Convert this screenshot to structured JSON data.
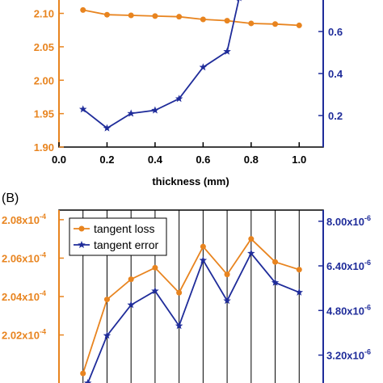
{
  "chart_data": [
    {
      "type": "line",
      "panel_label": "",
      "xlabel": "thickness (mm)",
      "x_ticks": [
        "0.0",
        "0.2",
        "0.4",
        "0.6",
        "0.8",
        "1.0"
      ],
      "xlim": [
        0.0,
        1.1
      ],
      "y_left": {
        "ylim": [
          1.9,
          2.12
        ],
        "ticks": [
          {
            "v": 1.9,
            "label": "1.90"
          },
          {
            "v": 1.95,
            "label": "1.95"
          },
          {
            "v": 2.0,
            "label": "2.00"
          },
          {
            "v": 2.05,
            "label": "2.05"
          },
          {
            "v": 2.1,
            "label": "2.10"
          }
        ],
        "color": "#E8841F"
      },
      "y_right": {
        "ylim": [
          0.05,
          0.75
        ],
        "ticks": [
          {
            "v": 0.2,
            "label": "0.2"
          },
          {
            "v": 0.4,
            "label": "0.4"
          },
          {
            "v": 0.6,
            "label": "0.6"
          }
        ],
        "color": "#1F2C9A"
      },
      "series": [
        {
          "axis": "left",
          "marker": "circle",
          "color": "#E8841F",
          "x": [
            0.1,
            0.2,
            0.3,
            0.4,
            0.5,
            0.6,
            0.7,
            0.8,
            0.9,
            1.0
          ],
          "y": [
            2.105,
            2.098,
            2.097,
            2.096,
            2.095,
            2.091,
            2.089,
            2.085,
            2.084,
            2.082
          ]
        },
        {
          "axis": "right",
          "marker": "star",
          "color": "#1F2C9A",
          "x": [
            0.1,
            0.2,
            0.3,
            0.4,
            0.5,
            0.6,
            0.7,
            0.75
          ],
          "y": [
            0.23,
            0.14,
            0.21,
            0.225,
            0.28,
            0.43,
            0.505,
            0.76
          ]
        }
      ]
    },
    {
      "type": "line",
      "panel_label": "(B)",
      "xlabel": "",
      "x_ticks": [],
      "xlim": [
        0.0,
        1.1
      ],
      "y_left": {
        "ylim": [
          1.995,
          2.085
        ],
        "ticks": [
          {
            "v": 2.02,
            "label": "2.02x10",
            "exp": "-4"
          },
          {
            "v": 2.04,
            "label": "2.04x10",
            "exp": "-4"
          },
          {
            "v": 2.06,
            "label": "2.06x10",
            "exp": "-4"
          },
          {
            "v": 2.08,
            "label": "2.08x10",
            "exp": "-4"
          }
        ],
        "color": "#E8841F"
      },
      "y_right": {
        "ylim": [
          2.2,
          8.4
        ],
        "ticks": [
          {
            "v": 3.2,
            "label": "3.20x10",
            "exp": "-6"
          },
          {
            "v": 4.8,
            "label": "4.80x10",
            "exp": "-6"
          },
          {
            "v": 6.4,
            "label": "6.40x10",
            "exp": "-6"
          },
          {
            "v": 8.0,
            "label": "8.00x10",
            "exp": "-6"
          }
        ],
        "color": "#1F2C9A"
      },
      "legend": {
        "placement": "top-left",
        "entries": [
          {
            "label": "tangent loss",
            "color": "#E8841F",
            "marker": "circle"
          },
          {
            "label": "tangent error",
            "color": "#1F2C9A",
            "marker": "star"
          }
        ]
      },
      "series": [
        {
          "name": "tangent loss",
          "axis": "left",
          "marker": "circle",
          "color": "#E8841F",
          "x": [
            0.1,
            0.2,
            0.3,
            0.4,
            0.5,
            0.6,
            0.7,
            0.8,
            0.9,
            1.0
          ],
          "y": [
            2.0,
            2.0385,
            2.049,
            2.055,
            2.042,
            2.066,
            2.0515,
            2.07,
            2.058,
            2.054
          ]
        },
        {
          "name": "tangent error",
          "axis": "right",
          "marker": "star",
          "color": "#1F2C9A",
          "x": [
            0.12,
            0.2,
            0.3,
            0.4,
            0.5,
            0.6,
            0.7,
            0.8,
            0.9,
            1.0
          ],
          "y": [
            2.2,
            3.9,
            5.0,
            5.5,
            4.25,
            6.6,
            5.15,
            6.85,
            5.8,
            5.45
          ]
        }
      ]
    }
  ]
}
